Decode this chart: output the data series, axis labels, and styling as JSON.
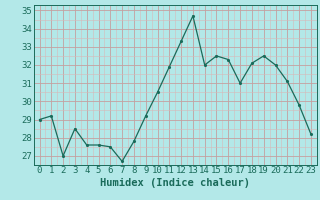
{
  "x": [
    0,
    1,
    2,
    3,
    4,
    5,
    6,
    7,
    8,
    9,
    10,
    11,
    12,
    13,
    14,
    15,
    16,
    17,
    18,
    19,
    20,
    21,
    22,
    23
  ],
  "y": [
    29,
    29.2,
    27,
    28.5,
    27.6,
    27.6,
    27.5,
    26.7,
    27.8,
    29.2,
    30.5,
    31.9,
    33.3,
    34.7,
    32.0,
    32.5,
    32.3,
    31.0,
    32.1,
    32.5,
    32.0,
    31.1,
    29.8,
    28.2
  ],
  "line_color": "#1a6b5a",
  "marker_color": "#1a6b5a",
  "bg_color": "#b3e8e8",
  "grid_major_color": "#c4a0a0",
  "grid_minor_color": "#d8b8b8",
  "xlabel": "Humidex (Indice chaleur)",
  "ylim_min": 26.5,
  "ylim_max": 35.3,
  "xlim_min": -0.5,
  "xlim_max": 23.5,
  "yticks": [
    27,
    28,
    29,
    30,
    31,
    32,
    33,
    34,
    35
  ],
  "xticks": [
    0,
    1,
    2,
    3,
    4,
    5,
    6,
    7,
    8,
    9,
    10,
    11,
    12,
    13,
    14,
    15,
    16,
    17,
    18,
    19,
    20,
    21,
    22,
    23
  ],
  "xlabel_fontsize": 7.5,
  "tick_fontsize": 6.5,
  "marker_size": 2.5,
  "linewidth": 0.9
}
